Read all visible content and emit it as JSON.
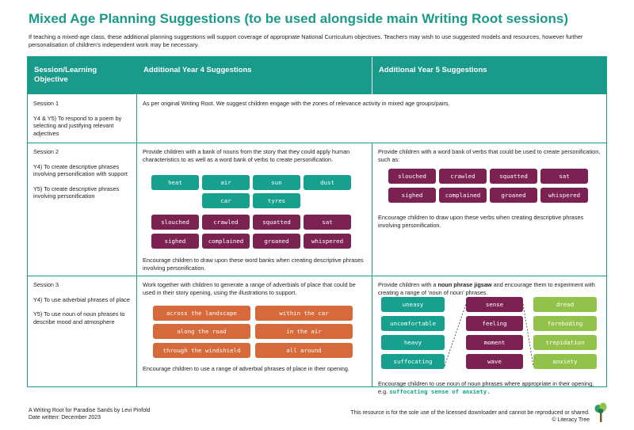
{
  "title": "Mixed Age Planning Suggestions (to be used alongside main Writing Root sessions)",
  "intro": "If teaching a mixed-age class, these additional planning suggestions will support coverage of appropriate National Curriculum objectives.  Teachers may wish to use suggested models and resources, however further personalisation of children’s independent work may be necessary.",
  "headers": {
    "col1": "Session/Learning Objective",
    "col2": "Additional Year 4 Suggestions",
    "col3": "Additional Year 5 Suggestions"
  },
  "session1": {
    "label": "Session 1",
    "objective": "Y4 & Y5) To respond to a poem by selecting and justifying relevant adjectives",
    "combined": "As per original Writing Root. We suggest children engage with the zones of relevance activity in mixed age groups/pairs."
  },
  "session2": {
    "label": "Session 2",
    "y4_objective": "Y4) To create descriptive phrases involving personification with support",
    "y5_objective": "Y5) To create descriptive phrases involving personification",
    "y4_intro": "Provide children with a bank of nouns from the story that they could apply human characteristics to as well as a word bank of verbs to create personification.",
    "y4_nouns": [
      "heat",
      "air",
      "sun",
      "dust",
      "car",
      "tyres"
    ],
    "y4_verbs": [
      "slouched",
      "crawled",
      "squatted",
      "sat",
      "sighed",
      "complained",
      "groaned",
      "whispered"
    ],
    "y4_outro": "Encourage children to draw upon these word banks when creating descriptive phrases involving personification.",
    "y5_intro": "Provide children with a word bank of verbs that could be used to create personification, such as:",
    "y5_verbs": [
      "slouched",
      "crawled",
      "squatted",
      "sat",
      "sighed",
      "complained",
      "groaned",
      "whispered"
    ],
    "y5_outro": "Encourage children to draw upon these verbs when creating descriptive phrases involving personification."
  },
  "session3": {
    "label": "Session 3",
    "y4_objective": "Y4) To use adverbial phrases of place",
    "y5_objective": "Y5) To use noun of noun phrases to describe mood and atmosphere",
    "y4_intro": "Work together with children to generate a range of adverbials of place that could be used in their story opening, using the illustrations to support.",
    "y4_adverbials": [
      "across the landscape",
      "within the car",
      "along the road",
      "in the air",
      "through the windshield",
      "all around"
    ],
    "y4_outro": "Encourage children to use a range of adverbial phrases of place in their opening.",
    "y5_intro_pre": "Provide children with a ",
    "y5_intro_bold": "noun phrase jigsaw",
    "y5_intro_post": " and encourage them to experiment with creating a range of ‘noun of noun’ phrases.",
    "jigsaw_left": [
      "uneasy",
      "uncomfortable",
      "heavy",
      "suffocating"
    ],
    "jigsaw_mid": [
      "sense",
      "feeling",
      "moment",
      "wave"
    ],
    "jigsaw_right": [
      "dread",
      "foreboding",
      "trepidation",
      "anxiety"
    ],
    "y5_outro_pre": "Encourage children to use noun of noun phrases where appropriate in their opening, e.g. ",
    "y5_outro_example": "suffocating sense of anxiety."
  },
  "footer": {
    "left_line1": "A Writing Root for Paradise Sands by Levi Pinfold",
    "left_line2": "Date written: December 2023",
    "right_line1": "This resource is for the sole use of the licensed downloader and cannot be reproduced or shared.",
    "right_line2": "© Literacy Tree"
  },
  "colors": {
    "teal": "#17a08e",
    "plum": "#7c2253",
    "orange": "#d76a3b",
    "green": "#93c24a"
  }
}
